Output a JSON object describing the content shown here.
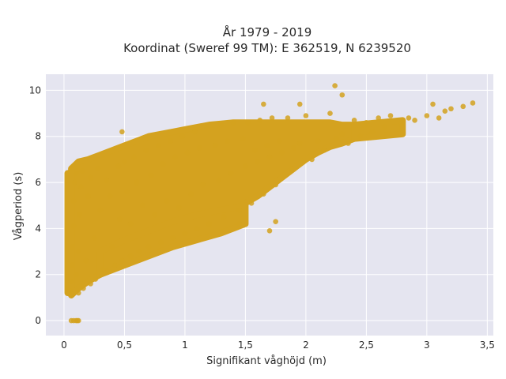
{
  "chart_data": {
    "type": "scatter",
    "title_line1": "År 1979 - 2019",
    "title_line2": "Koordinat (Sweref 99 TM): E 362519, N 6239520",
    "xlabel": "Signifikant våghöjd (m)",
    "ylabel": "Vågperiod (s)",
    "xlim": [
      -0.15,
      3.55
    ],
    "ylim": [
      -0.65,
      10.7
    ],
    "x_ticks": [
      0,
      0.5,
      1,
      1.5,
      2,
      2.5,
      3,
      3.5
    ],
    "x_tick_labels": [
      "0",
      "0,5",
      "1",
      "1,5",
      "2",
      "2,5",
      "3",
      "3,5"
    ],
    "y_ticks": [
      0,
      2,
      4,
      6,
      8,
      10
    ],
    "y_tick_labels": [
      "0",
      "2",
      "4",
      "6",
      "8",
      "10"
    ],
    "grid": true,
    "colors": {
      "marker": "#d4a21f",
      "plot_background": "#e5e5f0",
      "grid": "#ffffff"
    },
    "points": [
      [
        0.05,
        1.3
      ],
      [
        0.06,
        1.7
      ],
      [
        0.07,
        2.4
      ],
      [
        0.07,
        3.2
      ],
      [
        0.08,
        4.1
      ],
      [
        0.08,
        5.2
      ],
      [
        0.09,
        6.0
      ],
      [
        0.1,
        6.4
      ],
      [
        0.1,
        2.0
      ],
      [
        0.12,
        1.2
      ],
      [
        0.12,
        3.0
      ],
      [
        0.13,
        4.6
      ],
      [
        0.14,
        5.8
      ],
      [
        0.15,
        6.5
      ],
      [
        0.16,
        1.4
      ],
      [
        0.18,
        2.6
      ],
      [
        0.2,
        5.4
      ],
      [
        0.22,
        1.6
      ],
      [
        0.22,
        6.2
      ],
      [
        0.25,
        3.6
      ],
      [
        0.26,
        1.8
      ],
      [
        0.28,
        6.6
      ],
      [
        0.3,
        4.8
      ],
      [
        0.32,
        2.2
      ],
      [
        0.35,
        6.1
      ],
      [
        0.36,
        2.1
      ],
      [
        0.38,
        5.4
      ],
      [
        0.4,
        3.2
      ],
      [
        0.42,
        2.4
      ],
      [
        0.45,
        6.7
      ],
      [
        0.46,
        4.4
      ],
      [
        0.48,
        2.6
      ],
      [
        0.5,
        6.9
      ],
      [
        0.52,
        5.6
      ],
      [
        0.55,
        2.8
      ],
      [
        0.55,
        4.2
      ],
      [
        0.58,
        7.1
      ],
      [
        0.6,
        6.0
      ],
      [
        0.62,
        3.0
      ],
      [
        0.65,
        5.0
      ],
      [
        0.68,
        7.4
      ],
      [
        0.7,
        3.2
      ],
      [
        0.72,
        6.3
      ],
      [
        0.75,
        4.6
      ],
      [
        0.78,
        7.6
      ],
      [
        0.8,
        3.4
      ],
      [
        0.82,
        6.8
      ],
      [
        0.85,
        5.2
      ],
      [
        0.88,
        7.8
      ],
      [
        0.9,
        3.6
      ],
      [
        0.92,
        7.1
      ],
      [
        0.95,
        4.9
      ],
      [
        0.98,
        8.0
      ],
      [
        1.0,
        3.8
      ],
      [
        1.02,
        7.3
      ],
      [
        1.05,
        5.5
      ],
      [
        1.08,
        8.2
      ],
      [
        1.1,
        4.0
      ],
      [
        1.12,
        7.5
      ],
      [
        1.15,
        5.9
      ],
      [
        1.18,
        8.4
      ],
      [
        1.2,
        4.2
      ],
      [
        1.25,
        7.6
      ],
      [
        1.28,
        6.1
      ],
      [
        1.3,
        8.5
      ],
      [
        1.32,
        4.5
      ],
      [
        1.35,
        7.8
      ],
      [
        1.38,
        6.4
      ],
      [
        1.4,
        8.6
      ],
      [
        1.45,
        4.8
      ],
      [
        1.48,
        7.9
      ],
      [
        1.5,
        6.7
      ],
      [
        1.52,
        8.6
      ],
      [
        1.55,
        5.1
      ],
      [
        1.58,
        7.4
      ],
      [
        1.6,
        6.9
      ],
      [
        1.62,
        8.7
      ],
      [
        1.65,
        5.5
      ],
      [
        1.68,
        7.6
      ],
      [
        1.7,
        7.1
      ],
      [
        1.72,
        8.8
      ],
      [
        1.75,
        5.9
      ],
      [
        1.78,
        7.8
      ],
      [
        1.8,
        7.3
      ],
      [
        1.85,
        8.8
      ],
      [
        1.88,
        6.6
      ],
      [
        1.9,
        7.5
      ],
      [
        1.95,
        7.7
      ],
      [
        2.0,
        8.9
      ],
      [
        2.05,
        7.0
      ],
      [
        2.1,
        7.8
      ],
      [
        2.15,
        7.4
      ],
      [
        2.2,
        9.0
      ],
      [
        2.25,
        7.9
      ],
      [
        2.3,
        8.1
      ],
      [
        2.35,
        7.7
      ],
      [
        2.4,
        8.7
      ],
      [
        2.45,
        8.0
      ],
      [
        2.5,
        8.6
      ],
      [
        2.55,
        8.2
      ],
      [
        2.6,
        8.8
      ],
      [
        2.65,
        8.4
      ],
      [
        2.7,
        8.9
      ],
      [
        2.8,
        8.6
      ],
      [
        2.85,
        8.8
      ],
      [
        2.9,
        8.7
      ],
      [
        3.0,
        8.9
      ],
      [
        3.05,
        9.4
      ],
      [
        3.1,
        8.8
      ],
      [
        3.15,
        9.1
      ],
      [
        3.2,
        9.2
      ],
      [
        3.3,
        9.3
      ],
      [
        3.38,
        9.45
      ],
      [
        2.24,
        10.2
      ],
      [
        2.3,
        9.8
      ],
      [
        1.65,
        9.4
      ],
      [
        1.95,
        9.4
      ],
      [
        1.45,
        4.2
      ],
      [
        1.7,
        3.9
      ],
      [
        1.75,
        4.3
      ],
      [
        0.48,
        8.2
      ],
      [
        0.1,
        0.0
      ],
      [
        0.12,
        0.0
      ],
      [
        0.08,
        0.0
      ],
      [
        0.06,
        0.0
      ],
      [
        0.11,
        0.0
      ]
    ],
    "regions": [
      {
        "x": [
          0.03,
          0.07
        ],
        "ylo": [
          1.2,
          1.2
        ],
        "yhi": [
          6.4,
          6.4
        ]
      },
      {
        "x": [
          0.06,
          0.12,
          0.2,
          0.3,
          0.4,
          0.5,
          0.6,
          0.7,
          0.8,
          0.9,
          1.0,
          1.1,
          1.2,
          1.3,
          1.4,
          1.5,
          1.6,
          1.7,
          1.8,
          1.9,
          2.0,
          2.1,
          2.2,
          2.3,
          2.4
        ],
        "ylo": [
          1.1,
          1.4,
          1.7,
          2.0,
          2.3,
          2.55,
          2.8,
          3.05,
          3.3,
          3.55,
          3.8,
          4.05,
          4.3,
          4.55,
          4.8,
          5.1,
          5.4,
          5.8,
          6.2,
          6.6,
          7.0,
          7.3,
          7.55,
          7.7,
          7.9
        ],
        "yhi": [
          6.6,
          6.9,
          7.0,
          7.2,
          7.4,
          7.6,
          7.8,
          8.0,
          8.1,
          8.2,
          8.3,
          8.4,
          8.5,
          8.55,
          8.6,
          8.6,
          8.6,
          8.6,
          8.6,
          8.6,
          8.6,
          8.6,
          8.6,
          8.5,
          8.5
        ]
      },
      {
        "x": [
          2.4,
          2.6,
          2.8
        ],
        "ylo": [
          7.9,
          8.0,
          8.1
        ],
        "yhi": [
          8.5,
          8.6,
          8.7
        ]
      },
      {
        "x": [
          0.3,
          0.5,
          0.7,
          0.9,
          1.1,
          1.3,
          1.5
        ],
        "ylo": [
          2.0,
          2.4,
          2.8,
          3.2,
          3.5,
          3.8,
          4.2
        ],
        "yhi": [
          3.0,
          3.5,
          3.9,
          4.3,
          4.6,
          4.8,
          5.0
        ]
      }
    ]
  }
}
